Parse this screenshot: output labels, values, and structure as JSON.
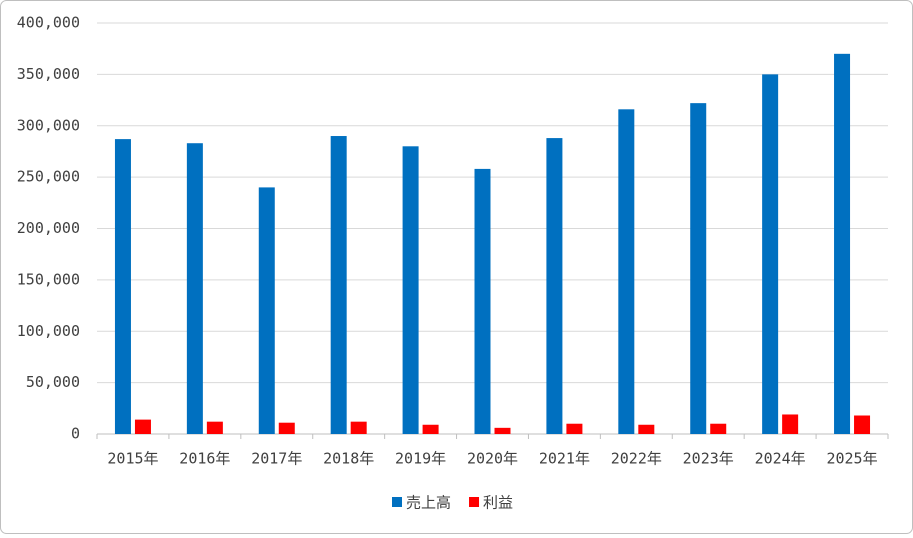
{
  "chart_data": {
    "type": "bar",
    "categories": [
      "2015年",
      "2016年",
      "2017年",
      "2018年",
      "2019年",
      "2020年",
      "2021年",
      "2022年",
      "2023年",
      "2024年",
      "2025年"
    ],
    "series": [
      {
        "name": "売上高",
        "color": "#0070c0",
        "values": [
          287000,
          283000,
          240000,
          290000,
          280000,
          258000,
          288000,
          316000,
          322000,
          350000,
          370000
        ]
      },
      {
        "name": "利益",
        "color": "#ff0000",
        "values": [
          14000,
          12000,
          11000,
          12000,
          9000,
          6000,
          10000,
          9000,
          10000,
          19000,
          18000
        ]
      }
    ],
    "ylim": [
      0,
      400000
    ],
    "yticks": [
      0,
      {
        "value": 50000,
        "label": "50,000"
      },
      {
        "value": 100000,
        "label": "100,000"
      },
      {
        "value": 150000,
        "label": "150,000"
      },
      {
        "value": 200000,
        "label": "200,000"
      },
      {
        "value": 250000,
        "label": "250,000"
      },
      {
        "value": 300000,
        "label": "300,000"
      },
      {
        "value": 350000,
        "label": "350,000"
      },
      {
        "value": 400000,
        "label": "400,000"
      }
    ],
    "grid": true,
    "legend": "bottom"
  }
}
